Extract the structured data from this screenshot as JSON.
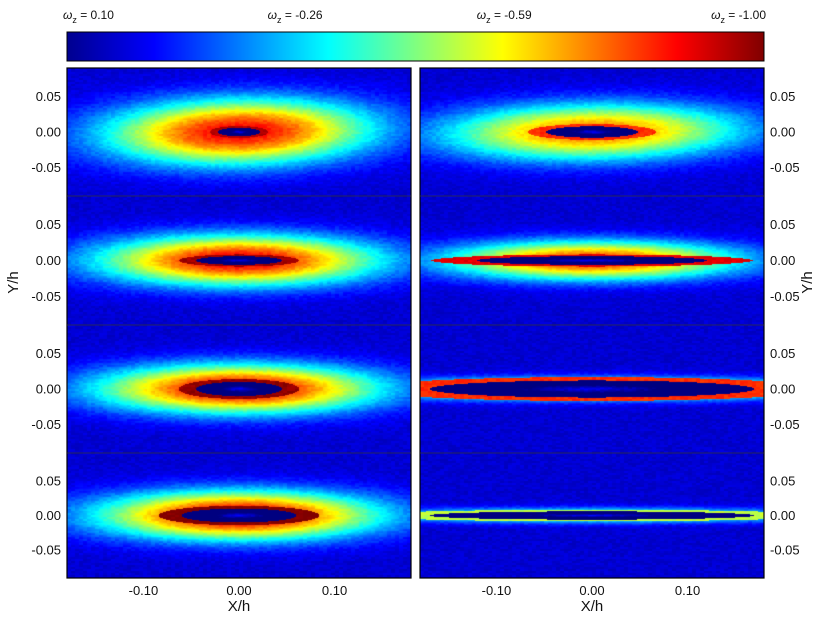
{
  "chart_data": {
    "type": "heatmap",
    "colormap": "jet",
    "colorbar": {
      "range": [
        0.1,
        -1.0
      ],
      "labels": [
        {
          "symbol": "ω",
          "sub": "z",
          "text": " = 0.10",
          "value": 0.1
        },
        {
          "symbol": "ω",
          "sub": "z",
          "text": " = -0.26",
          "value": -0.26
        },
        {
          "symbol": "ω",
          "sub": "z",
          "text": " = -0.59",
          "value": -0.59
        },
        {
          "symbol": "ω",
          "sub": "z",
          "text": " = -1.00",
          "value": -1.0
        }
      ]
    },
    "xlabel": "X/h",
    "ylabel": "Y/h",
    "xlim": [
      -0.18,
      0.18
    ],
    "ylim": [
      -0.09,
      0.09
    ],
    "xticks": [
      {
        "value": -0.1,
        "label": "-0.10"
      },
      {
        "value": 0.0,
        "label": "0.00"
      },
      {
        "value": 0.1,
        "label": "0.10"
      }
    ],
    "yticks": [
      {
        "value": 0.05,
        "label": "0.05"
      },
      {
        "value": 0.0,
        "label": "0.00"
      },
      {
        "value": -0.05,
        "label": "-0.05"
      }
    ],
    "layout": {
      "rows": 4,
      "columns": 2,
      "ylabel_sides": [
        "left",
        "right"
      ]
    },
    "panels": [
      {
        "row": 0,
        "col": 0,
        "ellipse": {
          "a": 0.17,
          "b": 0.056,
          "peak": -0.86,
          "tilt": 1.0
        },
        "core": {
          "a": 0.022,
          "b": 0.006
        }
      },
      {
        "row": 1,
        "col": 0,
        "ellipse": {
          "a": 0.18,
          "b": 0.043,
          "peak": -0.88,
          "tilt": 0
        },
        "core": {
          "a": 0.045,
          "b": 0.006
        }
      },
      {
        "row": 2,
        "col": 0,
        "ellipse": {
          "a": 0.18,
          "b": 0.042,
          "peak": -0.9,
          "tilt": 0
        },
        "core": {
          "a": 0.045,
          "b": 0.01
        }
      },
      {
        "row": 3,
        "col": 0,
        "ellipse": {
          "a": 0.18,
          "b": 0.043,
          "peak": -0.92,
          "tilt": 0
        },
        "core": {
          "a": 0.06,
          "b": 0.01
        }
      },
      {
        "row": 0,
        "col": 1,
        "ellipse": {
          "a": 0.19,
          "b": 0.048,
          "peak": -0.72,
          "tilt": 0.7
        },
        "core": {
          "a": 0.048,
          "b": 0.008
        }
      },
      {
        "row": 1,
        "col": 1,
        "ellipse": {
          "a": 0.19,
          "b": 0.033,
          "peak": -0.8,
          "tilt": 0
        },
        "core": {
          "a": 0.12,
          "b": 0.006
        }
      },
      {
        "row": 2,
        "col": 1,
        "ellipse": {
          "a": 0.3,
          "b": 0.018,
          "peak": -0.72,
          "tilt": 0
        },
        "core": {
          "a": 0.17,
          "b": 0.012
        }
      },
      {
        "row": 3,
        "col": 1,
        "ellipse": {
          "a": 0.3,
          "b": 0.013,
          "peak": -0.4,
          "tilt": 0
        },
        "core": {
          "a": 0.17,
          "b": 0.006
        }
      }
    ]
  }
}
